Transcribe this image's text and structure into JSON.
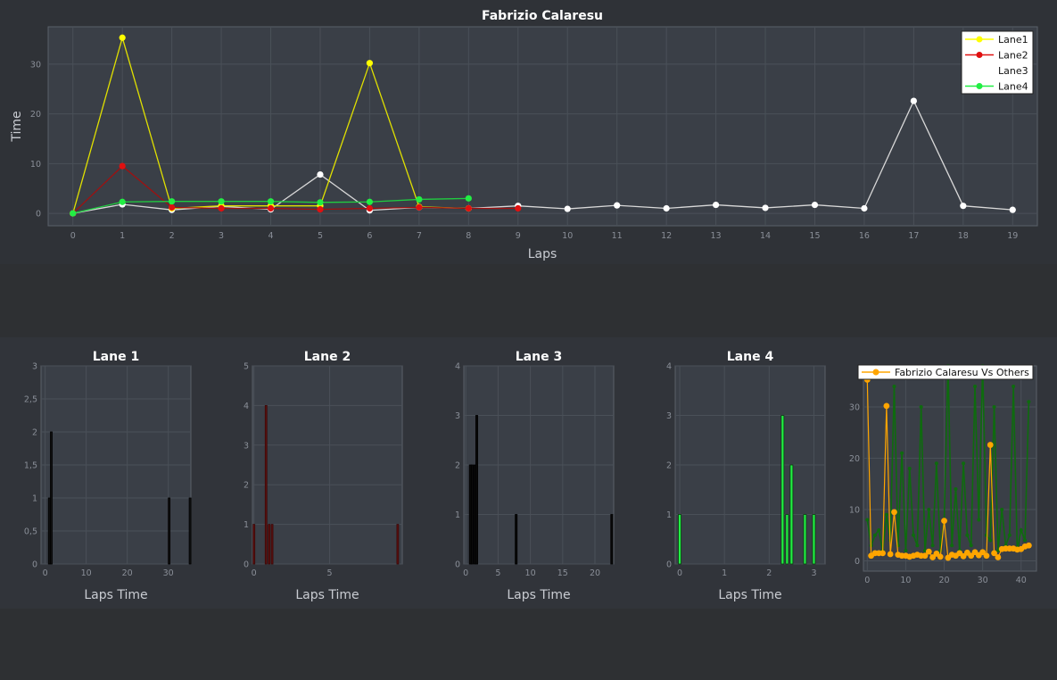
{
  "colors": {
    "lane1": "#ffff00",
    "lane2": "#e01010",
    "lane3": "#ffffff",
    "lane4": "#22ee44",
    "bar_lane1": "#111111",
    "bar_lane2": "#5c1010",
    "bar_lane3": "#0a0a0a",
    "bar_lane4": "#22ee44",
    "vs_line": "#ffa500",
    "vs_others": "#0e6b0e",
    "background": "#2f3237",
    "plot_background": "#3a3f47"
  },
  "chart_data": [
    {
      "type": "line",
      "title": "Fabrizio Calaresu",
      "xlabel": "Laps",
      "ylabel": "Time",
      "xlim": [
        -0.5,
        19.5
      ],
      "ylim": [
        -2.5,
        37.5
      ],
      "xticks": [
        "0",
        "1",
        "2",
        "3",
        "4",
        "5",
        "6",
        "7",
        "8",
        "9",
        "10",
        "11",
        "12",
        "13",
        "14",
        "15",
        "16",
        "17",
        "18",
        "19"
      ],
      "yticks": [
        "0",
        "10",
        "20",
        "30"
      ],
      "grid": true,
      "legend_position": "top-right",
      "series": [
        {
          "name": "Lane1",
          "markers": true,
          "x": [
            0,
            1,
            2,
            3,
            4,
            5,
            6,
            7,
            8
          ],
          "y": [
            0,
            35.3,
            1.0,
            1.5,
            1.5,
            1.5,
            30.2,
            1.3,
            1.0
          ]
        },
        {
          "name": "Lane2",
          "markers": true,
          "x": [
            0,
            1,
            2,
            3,
            4,
            5,
            6,
            7,
            8,
            9
          ],
          "y": [
            0,
            9.5,
            1.2,
            1.0,
            1.0,
            0.8,
            1.0,
            1.2,
            1.0,
            1.0
          ]
        },
        {
          "name": "Lane3",
          "markers": false,
          "x": [
            0,
            1,
            2,
            3,
            4,
            5,
            6,
            7,
            8,
            9,
            10,
            11,
            12,
            13,
            14,
            15,
            16,
            17,
            18,
            19
          ],
          "y": [
            0,
            1.8,
            0.7,
            1.4,
            0.8,
            7.8,
            0.6,
            1.2,
            1.0,
            1.5,
            0.9,
            1.6,
            1.0,
            1.7,
            1.1,
            1.7,
            1.0,
            22.6,
            1.5,
            0.7
          ]
        },
        {
          "name": "Lane4",
          "markers": true,
          "x": [
            0,
            1,
            2,
            3,
            4,
            5,
            6,
            7,
            8
          ],
          "y": [
            0,
            2.3,
            2.4,
            2.4,
            2.4,
            2.2,
            2.3,
            2.8,
            3.0
          ]
        }
      ]
    },
    {
      "type": "bar",
      "title": "Lane 1",
      "xlabel": "Laps Time",
      "ylabel": "",
      "xlim": [
        -1,
        35.5
      ],
      "ylim": [
        0,
        3
      ],
      "xticks": [
        {
          "v": 0,
          "t": "0"
        },
        {
          "v": 10,
          "t": "10"
        },
        {
          "v": 20,
          "t": "20"
        },
        {
          "v": 30,
          "t": "30"
        }
      ],
      "yticks": [
        {
          "v": 0,
          "t": "0"
        },
        {
          "v": 0.5,
          "t": "0,5"
        },
        {
          "v": 1,
          "t": "1"
        },
        {
          "v": 1.5,
          "t": "1,5"
        },
        {
          "v": 2,
          "t": "2"
        },
        {
          "v": 2.5,
          "t": "2,5"
        },
        {
          "v": 3,
          "t": "3"
        }
      ],
      "bars": [
        {
          "x": 1.0,
          "y": 1
        },
        {
          "x": 1.5,
          "y": 2
        },
        {
          "x": 30.2,
          "y": 1
        },
        {
          "x": 35.3,
          "y": 1
        }
      ],
      "bar_width": 0.35
    },
    {
      "type": "bar",
      "title": "Lane 2",
      "xlabel": "Laps Time",
      "ylabel": "",
      "xlim": [
        -0.1,
        9.8
      ],
      "ylim": [
        0,
        5
      ],
      "xticks": [
        {
          "v": 0,
          "t": "0"
        },
        {
          "v": 5,
          "t": "5"
        }
      ],
      "yticks": [
        {
          "v": 0,
          "t": "0"
        },
        {
          "v": 1,
          "t": "1"
        },
        {
          "v": 2,
          "t": "2"
        },
        {
          "v": 3,
          "t": "3"
        },
        {
          "v": 4,
          "t": "4"
        },
        {
          "v": 5,
          "t": "5"
        }
      ],
      "bars": [
        {
          "x": 0,
          "y": 1
        },
        {
          "x": 0.8,
          "y": 4
        },
        {
          "x": 1.0,
          "y": 1
        },
        {
          "x": 1.2,
          "y": 1
        },
        {
          "x": 9.5,
          "y": 1
        }
      ],
      "bar_width": 0.1
    },
    {
      "type": "bar",
      "title": "Lane 3",
      "xlabel": "Laps Time",
      "ylabel": "",
      "xlim": [
        -0.3,
        22.9
      ],
      "ylim": [
        0,
        4
      ],
      "xticks": [
        {
          "v": 0,
          "t": "0"
        },
        {
          "v": 5,
          "t": "5"
        },
        {
          "v": 10,
          "t": "10"
        },
        {
          "v": 15,
          "t": "15"
        },
        {
          "v": 20,
          "t": "20"
        }
      ],
      "yticks": [
        {
          "v": 0,
          "t": "0"
        },
        {
          "v": 1,
          "t": "1"
        },
        {
          "v": 2,
          "t": "2"
        },
        {
          "v": 3,
          "t": "3"
        },
        {
          "v": 4,
          "t": "4"
        }
      ],
      "bars": [
        {
          "x": 0.7,
          "y": 2
        },
        {
          "x": 1.0,
          "y": 2
        },
        {
          "x": 1.4,
          "y": 2
        },
        {
          "x": 1.7,
          "y": 3
        },
        {
          "x": 7.8,
          "y": 1
        },
        {
          "x": 22.6,
          "y": 1
        }
      ],
      "bar_width": 0.3
    },
    {
      "type": "bar",
      "title": "Lane 4",
      "xlabel": "Laps Time",
      "ylabel": "",
      "xlim": [
        -0.1,
        3.25
      ],
      "ylim": [
        0,
        4
      ],
      "xticks": [
        {
          "v": 0,
          "t": "0"
        },
        {
          "v": 1,
          "t": "1"
        },
        {
          "v": 2,
          "t": "2"
        },
        {
          "v": 3,
          "t": "3"
        }
      ],
      "yticks": [
        {
          "v": 0,
          "t": "0"
        },
        {
          "v": 1,
          "t": "1"
        },
        {
          "v": 2,
          "t": "2"
        },
        {
          "v": 3,
          "t": "3"
        },
        {
          "v": 4,
          "t": "4"
        }
      ],
      "bars": [
        {
          "x": 0,
          "y": 1
        },
        {
          "x": 2.3,
          "y": 3
        },
        {
          "x": 2.4,
          "y": 1
        },
        {
          "x": 2.5,
          "y": 2
        },
        {
          "x": 2.8,
          "y": 1
        },
        {
          "x": 3.0,
          "y": 1
        }
      ],
      "bar_width": 0.06
    },
    {
      "type": "line",
      "title": "",
      "xlabel": "",
      "ylabel": "",
      "xlim": [
        -1,
        44
      ],
      "ylim": [
        -2,
        38
      ],
      "xticks": [
        {
          "v": 0,
          "t": "0"
        },
        {
          "v": 10,
          "t": "10"
        },
        {
          "v": 20,
          "t": "20"
        },
        {
          "v": 30,
          "t": "30"
        },
        {
          "v": 40,
          "t": "40"
        }
      ],
      "yticks": [
        {
          "v": 0,
          "t": "0"
        },
        {
          "v": 10,
          "t": "10"
        },
        {
          "v": 20,
          "t": "20"
        },
        {
          "v": 30,
          "t": "30"
        }
      ],
      "legend_position": "top",
      "series": [
        {
          "name": "Fabrizio Calaresu Vs Others",
          "markers": true,
          "y": [
            35.3,
            1.0,
            1.5,
            1.5,
            1.5,
            30.2,
            1.3,
            9.5,
            1.2,
            1.0,
            1.0,
            0.8,
            1.0,
            1.2,
            1.0,
            1.0,
            1.8,
            0.7,
            1.4,
            0.8,
            7.8,
            0.6,
            1.2,
            1.0,
            1.5,
            0.9,
            1.6,
            1.0,
            1.7,
            1.1,
            1.7,
            1.0,
            22.6,
            1.5,
            0.7,
            2.3,
            2.4,
            2.4,
            2.4,
            2.2,
            2.3,
            2.8,
            3.0
          ]
        },
        {
          "markers": false,
          "y": [
            8,
            3,
            5,
            6,
            2,
            9,
            4,
            34,
            3,
            21,
            2,
            18,
            5,
            3,
            30,
            2,
            10,
            3,
            19,
            2,
            8,
            38,
            3,
            14,
            2,
            19,
            5,
            3,
            34,
            8,
            38,
            5,
            4,
            30,
            2,
            10,
            3,
            5,
            34,
            2,
            6,
            4,
            31
          ]
        }
      ]
    }
  ]
}
